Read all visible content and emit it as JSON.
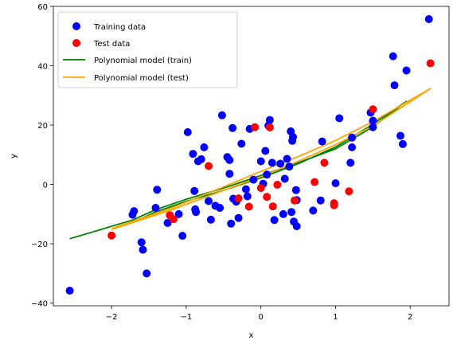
{
  "chart_data": {
    "type": "scatter",
    "xlabel": "x",
    "ylabel": "y",
    "xlim": [
      -2.78,
      2.52
    ],
    "ylim": [
      -40.9,
      60.0
    ],
    "xticks": [
      -2,
      -1,
      0,
      1,
      2
    ],
    "yticks": [
      -40,
      -20,
      0,
      20,
      40,
      60
    ],
    "grid": false,
    "legend_position": "top-left",
    "colors": {
      "train_points": "#0000ff",
      "test_points": "#ff0000",
      "train_model": "#008000",
      "test_model": "#ffa500"
    },
    "series": [
      {
        "name": "Training data",
        "kind": "scatter",
        "color_key": "train_points",
        "points": [
          [
            -2.56,
            -35.8
          ],
          [
            -1.72,
            -10.2
          ],
          [
            -1.7,
            -9.0
          ],
          [
            -1.6,
            -19.5
          ],
          [
            -1.58,
            -22.0
          ],
          [
            -1.53,
            -30.0
          ],
          [
            -1.41,
            -7.9
          ],
          [
            -1.39,
            -1.8
          ],
          [
            -1.25,
            -13.0
          ],
          [
            -1.1,
            -10.0
          ],
          [
            -1.05,
            -17.3
          ],
          [
            -0.98,
            17.6
          ],
          [
            -0.91,
            10.3
          ],
          [
            -0.89,
            -2.2
          ],
          [
            -0.88,
            -8.4
          ],
          [
            -0.87,
            -9.3
          ],
          [
            -0.84,
            7.8
          ],
          [
            -0.8,
            8.5
          ],
          [
            -0.76,
            12.5
          ],
          [
            -0.7,
            -5.6
          ],
          [
            -0.67,
            -11.9
          ],
          [
            -0.61,
            -7.2
          ],
          [
            -0.55,
            -7.9
          ],
          [
            -0.52,
            23.3
          ],
          [
            -0.45,
            9.2
          ],
          [
            -0.42,
            8.2
          ],
          [
            -0.42,
            3.6
          ],
          [
            -0.4,
            -13.2
          ],
          [
            -0.38,
            19.0
          ],
          [
            -0.37,
            -4.8
          ],
          [
            -0.33,
            -5.8
          ],
          [
            -0.3,
            -11.3
          ],
          [
            -0.26,
            13.7
          ],
          [
            -0.2,
            -1.6
          ],
          [
            -0.18,
            -4.0
          ],
          [
            -0.15,
            18.7
          ],
          [
            -0.1,
            1.6
          ],
          [
            0.0,
            7.8
          ],
          [
            0.03,
            0.2
          ],
          [
            0.06,
            11.3
          ],
          [
            0.08,
            3.3
          ],
          [
            0.1,
            19.8
          ],
          [
            0.12,
            21.7
          ],
          [
            0.15,
            7.3
          ],
          [
            0.18,
            -12.0
          ],
          [
            0.26,
            7.0
          ],
          [
            0.3,
            -10.0
          ],
          [
            0.32,
            1.9
          ],
          [
            0.35,
            8.6
          ],
          [
            0.38,
            6.0
          ],
          [
            0.4,
            17.9
          ],
          [
            0.41,
            -9.3
          ],
          [
            0.42,
            14.7
          ],
          [
            0.43,
            16.0
          ],
          [
            0.44,
            -12.5
          ],
          [
            0.47,
            -1.9
          ],
          [
            0.48,
            -5.3
          ],
          [
            0.48,
            -14.1
          ],
          [
            0.7,
            -8.8
          ],
          [
            0.8,
            -5.4
          ],
          [
            0.82,
            14.5
          ],
          [
            1.0,
            0.4
          ],
          [
            1.05,
            22.3
          ],
          [
            1.2,
            7.3
          ],
          [
            1.22,
            15.8
          ],
          [
            1.22,
            12.5
          ],
          [
            1.47,
            24.2
          ],
          [
            1.5,
            19.3
          ],
          [
            1.5,
            21.5
          ],
          [
            1.77,
            43.2
          ],
          [
            1.79,
            33.4
          ],
          [
            1.87,
            16.4
          ],
          [
            1.9,
            13.6
          ],
          [
            1.95,
            38.4
          ],
          [
            2.25,
            55.7
          ]
        ]
      },
      {
        "name": "Test data",
        "kind": "scatter",
        "color_key": "test_points",
        "points": [
          [
            -2.0,
            -17.2
          ],
          [
            -1.22,
            -10.4
          ],
          [
            -1.17,
            -11.7
          ],
          [
            -0.7,
            6.2
          ],
          [
            -0.3,
            -4.7
          ],
          [
            -0.16,
            -7.5
          ],
          [
            -0.08,
            19.3
          ],
          [
            0.0,
            -1.2
          ],
          [
            0.08,
            -4.2
          ],
          [
            0.12,
            19.2
          ],
          [
            0.16,
            -7.4
          ],
          [
            0.22,
            -0.1
          ],
          [
            0.45,
            -5.4
          ],
          [
            0.72,
            0.8
          ],
          [
            0.85,
            7.3
          ],
          [
            0.98,
            -6.3
          ],
          [
            0.98,
            -7.0
          ],
          [
            1.18,
            -2.3
          ],
          [
            1.5,
            25.3
          ],
          [
            2.27,
            40.8
          ]
        ]
      },
      {
        "name": "Polynomial model (train)",
        "kind": "line",
        "color_key": "train_model",
        "points": [
          [
            -2.56,
            -18.3
          ],
          [
            -1.72,
            -12.0
          ],
          [
            -1.41,
            -8.5
          ],
          [
            -1.0,
            -5.0
          ],
          [
            -0.5,
            -1.2
          ],
          [
            0.0,
            3.0
          ],
          [
            0.5,
            7.3
          ],
          [
            1.0,
            12.0
          ],
          [
            1.5,
            19.4
          ],
          [
            1.95,
            28.0
          ],
          [
            1.5,
            20.3
          ],
          [
            1.0,
            12.6
          ],
          [
            0.5,
            7.0
          ],
          [
            0.0,
            2.2
          ],
          [
            -0.5,
            -2.0
          ],
          [
            -1.0,
            -5.7
          ],
          [
            -1.41,
            -9.3
          ],
          [
            -1.72,
            -12.8
          ]
        ]
      },
      {
        "name": "Polynomial model (test)",
        "kind": "line",
        "color_key": "test_points_line",
        "points": [
          [
            -2.0,
            -14.9
          ],
          [
            -1.2,
            -8.0
          ],
          [
            -0.5,
            -0.8
          ],
          [
            0.0,
            4.4
          ],
          [
            0.5,
            9.4
          ],
          [
            1.0,
            14.8
          ],
          [
            1.5,
            21.2
          ],
          [
            2.27,
            32.3
          ],
          [
            1.5,
            19.7
          ],
          [
            1.0,
            13.4
          ],
          [
            0.5,
            7.8
          ],
          [
            0.0,
            2.6
          ],
          [
            -0.5,
            -2.0
          ],
          [
            -1.2,
            -8.6
          ],
          [
            -2.0,
            -15.2
          ]
        ]
      }
    ]
  }
}
